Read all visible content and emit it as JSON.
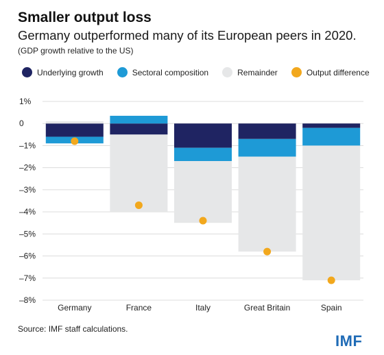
{
  "header": {
    "title": "Smaller output loss",
    "subtitle": "Germany outperformed many of its European peers in 2020.",
    "note": "(GDP growth relative to the US)"
  },
  "legend": [
    {
      "label": "Underlying growth",
      "color": "#1f2462"
    },
    {
      "label": "Sectoral composition",
      "color": "#1e9ad6"
    },
    {
      "label": "Remainder",
      "color": "#e6e7e8"
    },
    {
      "label": "Output difference",
      "color": "#f2a81d"
    }
  ],
  "footer": {
    "source": "Source: IMF staff calculations.",
    "logo": "IMF"
  },
  "chart_data": {
    "type": "bar",
    "stacked": true,
    "categories": [
      "Germany",
      "France",
      "Italy",
      "Great Britain",
      "Spain"
    ],
    "y_tick_labels": [
      "1%",
      "0",
      "–1%",
      "–2%",
      "–3%",
      "–4%",
      "–5%",
      "–6%",
      "–7%",
      "–8%"
    ],
    "y_tick_values": [
      1,
      0,
      -1,
      -2,
      -3,
      -4,
      -5,
      -6,
      -7,
      -8
    ],
    "ylim": [
      -8,
      1
    ],
    "grid": true,
    "legend_position": "top",
    "series": [
      {
        "name": "Underlying growth",
        "color": "#1f2462",
        "values": [
          -0.6,
          -0.5,
          -1.1,
          -0.7,
          -0.2
        ]
      },
      {
        "name": "Sectoral composition",
        "color": "#1e9ad6",
        "values": [
          -0.3,
          0.35,
          -0.6,
          -0.8,
          -0.8
        ]
      },
      {
        "name": "Remainder",
        "color": "#e6e7e8",
        "values": [
          0.1,
          -3.5,
          -2.8,
          -4.3,
          -6.1
        ]
      }
    ],
    "markers": {
      "name": "Output difference",
      "color": "#f2a81d",
      "values": [
        -0.8,
        -3.7,
        -4.4,
        -5.8,
        -7.1
      ]
    }
  }
}
